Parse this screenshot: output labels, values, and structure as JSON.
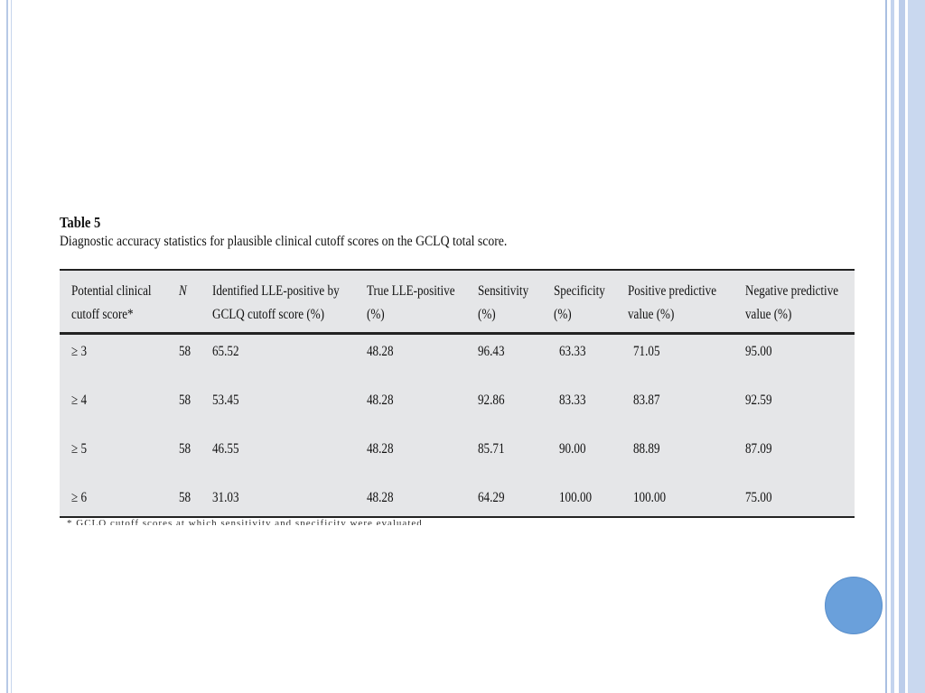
{
  "table": {
    "title": "Table 5",
    "caption": "Diagnostic accuracy statistics for plausible clinical cutoff scores on the GCLQ total score.",
    "headers": [
      {
        "l1": "Potential clinical",
        "l2": "cutoff score*"
      },
      {
        "l1": "N",
        "l2": ""
      },
      {
        "l1": "Identified LLE-positive by",
        "l2": "GCLQ cutoff score (%)"
      },
      {
        "l1": "True LLE-positive",
        "l2": "(%)"
      },
      {
        "l1": "Sensitivity",
        "l2": "(%)"
      },
      {
        "l1": "Specificity",
        "l2": "(%)"
      },
      {
        "l1": "Positive predictive",
        "l2": "value (%)"
      },
      {
        "l1": "Negative predictive",
        "l2": "value (%)"
      }
    ],
    "rows": [
      [
        "≥ 3",
        "58",
        "65.52",
        "48.28",
        "96.43",
        "63.33",
        "71.05",
        "95.00"
      ],
      [
        "≥ 4",
        "58",
        "53.45",
        "48.28",
        "92.86",
        "83.33",
        "83.87",
        "92.59"
      ],
      [
        "≥ 5",
        "58",
        "46.55",
        "48.28",
        "85.71",
        "90.00",
        "88.89",
        "87.09"
      ],
      [
        "≥ 6",
        "58",
        "31.03",
        "48.28",
        "64.29",
        "100.00",
        "100.00",
        "75.00"
      ]
    ],
    "footnote": "* GCLQ cutoff scores at which sensitivity and specificity were evaluated"
  }
}
